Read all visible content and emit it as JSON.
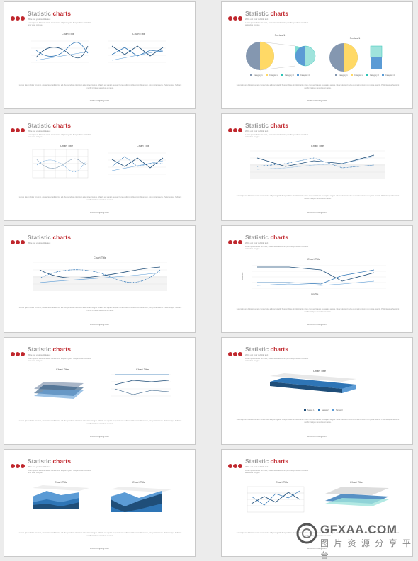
{
  "slide_title_part1": "Statistic",
  "slide_title_part2": "charts",
  "subtitle": "Write out your subtitle text",
  "intro_text": "Lorem ipsum dolor sit amet, consectetur adipiscing elit. Suspendisse tincidunt ante vitae congue.",
  "body_text": "Lorem ipsum dolor sit amet, consectetur adipiscing elit. Suspendisse tincidunt ante vitae congue. Mauris eu sapien augue. Nunc eleifend nulla et condimentum, non porta mauris. Pellentesque habitant morbi tristique senectus et netus.",
  "footer": "www.company.com",
  "chart_title": "Chart Title",
  "series_pie": "Series 1",
  "legend": [
    "Category 1",
    "Category 2",
    "Category 3",
    "Category 4"
  ],
  "series_legend": [
    "Series 1",
    "Series 2",
    "Series 3"
  ],
  "axis_title": "Axis Title",
  "colors": {
    "accent": "#c0272d",
    "line_dark": "#1f4e79",
    "line_mid": "#2e75b6",
    "teal": "#2ec4b6",
    "gold": "#ffd966"
  },
  "watermark": {
    "main": "GFXAA.COM",
    "sub": "图 片 资 源 分 享 平 台"
  }
}
